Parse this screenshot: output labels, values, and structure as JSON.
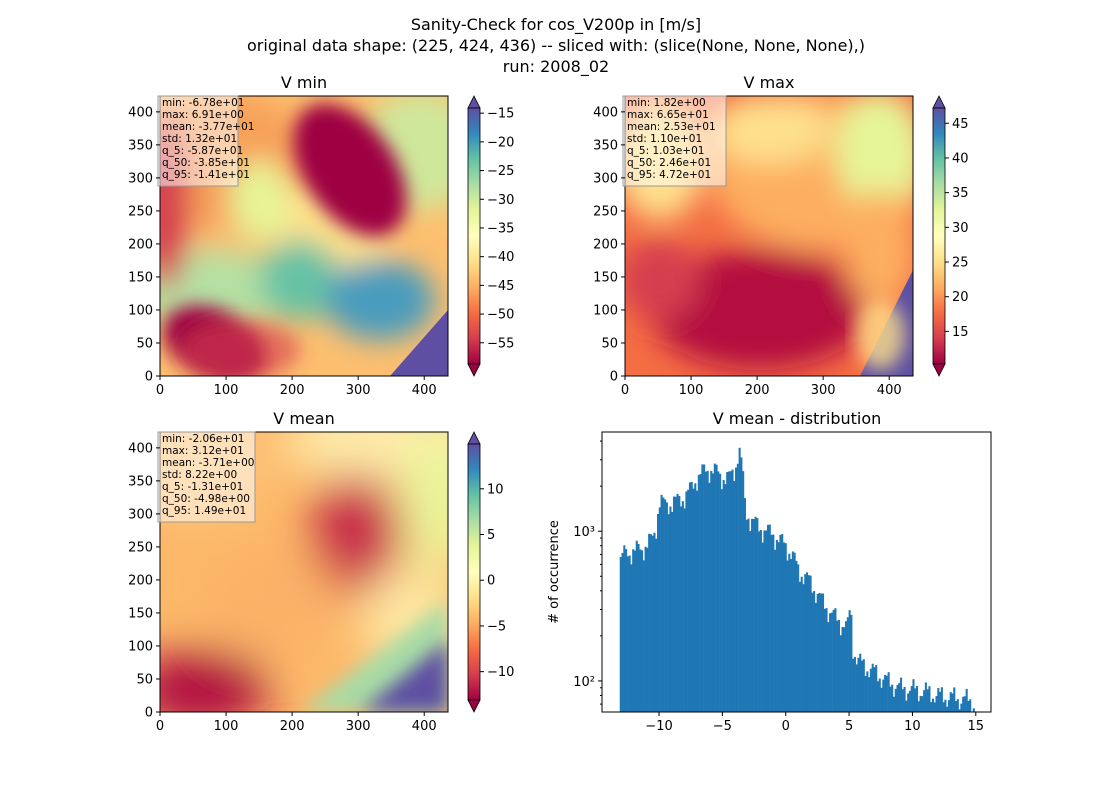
{
  "figure": {
    "suptitle_lines": [
      "Sanity-Check for cos_V200p in [m/s]",
      "original data shape: (225, 424, 436) -- sliced with: (slice(None, None, None),)",
      "run: 2008_02"
    ]
  },
  "chart_data": [
    {
      "type": "heatmap",
      "title": "V min",
      "colormap": "Spectral",
      "xlim": [
        0,
        436
      ],
      "ylim": [
        0,
        424
      ],
      "xticks": [
        0,
        100,
        200,
        300,
        400
      ],
      "yticks": [
        0,
        50,
        100,
        150,
        200,
        250,
        300,
        350,
        400
      ],
      "clim": [
        -58.7,
        -14.1
      ],
      "colorbar_ticks": [
        -55,
        -50,
        -45,
        -40,
        -35,
        -30,
        -25,
        -20,
        -15
      ],
      "colorbar_extend": "both",
      "stats": [
        "min: -6.78e+01",
        "max: 6.91e+00",
        "mean: -3.77e+01",
        "std: 1.32e+01",
        "q_5: -5.87e+01",
        "q_50: -3.85e+01",
        "q_95: -1.41e+01"
      ]
    },
    {
      "type": "heatmap",
      "title": "V max",
      "colormap": "Spectral",
      "xlim": [
        0,
        436
      ],
      "ylim": [
        0,
        424
      ],
      "xticks": [
        0,
        100,
        200,
        300,
        400
      ],
      "yticks": [
        0,
        50,
        100,
        150,
        200,
        250,
        300,
        350,
        400
      ],
      "clim": [
        10.3,
        47.2
      ],
      "colorbar_ticks": [
        15,
        20,
        25,
        30,
        35,
        40,
        45
      ],
      "colorbar_extend": "both",
      "stats": [
        "min: 1.82e+00",
        "max: 6.65e+01",
        "mean: 2.53e+01",
        "std: 1.10e+01",
        "q_5: 1.03e+01",
        "q_50: 2.46e+01",
        "q_95: 4.72e+01"
      ]
    },
    {
      "type": "heatmap",
      "title": "V mean",
      "colormap": "Spectral",
      "xlim": [
        0,
        436
      ],
      "ylim": [
        0,
        424
      ],
      "xticks": [
        0,
        100,
        200,
        300,
        400
      ],
      "yticks": [
        0,
        50,
        100,
        150,
        200,
        250,
        300,
        350,
        400
      ],
      "clim": [
        -13.1,
        14.9
      ],
      "colorbar_ticks": [
        -10,
        -5,
        0,
        5,
        10
      ],
      "colorbar_extend": "both",
      "stats": [
        "min: -2.06e+01",
        "max: 3.12e+01",
        "mean: -3.71e+00",
        "std: 8.22e+00",
        "q_5: -1.31e+01",
        "q_50: -4.98e+00",
        "q_95: 1.49e+01"
      ]
    },
    {
      "type": "bar",
      "title": "V mean - distribution",
      "ylabel": "# of occurrence",
      "yscale": "log",
      "xlim": [
        -14.5,
        16.2
      ],
      "ylim": [
        62,
        4600
      ],
      "xticks": [
        -10,
        -5,
        0,
        5,
        10,
        15
      ],
      "yticks": [
        100,
        1000
      ],
      "ytick_labels": [
        "10²",
        "10³"
      ],
      "bin_range": [
        -13.1,
        14.9
      ],
      "color": "#1f77b4",
      "anchors": [
        [
          -13.1,
          600
        ],
        [
          -12.9,
          690
        ],
        [
          -12.5,
          720
        ],
        [
          -12.0,
          740
        ],
        [
          -11.5,
          760
        ],
        [
          -11.0,
          800
        ],
        [
          -10.5,
          900
        ],
        [
          -10.2,
          1100
        ],
        [
          -10.0,
          1600
        ],
        [
          -9.5,
          1500
        ],
        [
          -9.0,
          1550
        ],
        [
          -8.5,
          1600
        ],
        [
          -8.0,
          1700
        ],
        [
          -7.5,
          1900
        ],
        [
          -7.0,
          2300
        ],
        [
          -6.5,
          2500
        ],
        [
          -6.0,
          2600
        ],
        [
          -5.5,
          2500
        ],
        [
          -5.0,
          2300
        ],
        [
          -4.5,
          2250
        ],
        [
          -4.0,
          2600
        ],
        [
          -3.7,
          3600
        ],
        [
          -3.4,
          2500
        ],
        [
          -3.2,
          1400
        ],
        [
          -2.8,
          1200
        ],
        [
          -2.0,
          1050
        ],
        [
          -1.0,
          950
        ],
        [
          0.0,
          800
        ],
        [
          0.5,
          700
        ],
        [
          1.0,
          550
        ],
        [
          1.5,
          500
        ],
        [
          2.0,
          450
        ],
        [
          2.5,
          380
        ],
        [
          3.0,
          330
        ],
        [
          3.5,
          290
        ],
        [
          4.0,
          260
        ],
        [
          4.5,
          240
        ],
        [
          4.9,
          230
        ],
        [
          5.1,
          330
        ],
        [
          5.3,
          170
        ],
        [
          5.6,
          140
        ],
        [
          6.0,
          130
        ],
        [
          7.0,
          115
        ],
        [
          8.0,
          100
        ],
        [
          9.0,
          90
        ],
        [
          10.0,
          88
        ],
        [
          11.0,
          85
        ],
        [
          12.0,
          80
        ],
        [
          13.0,
          78
        ],
        [
          14.0,
          76
        ],
        [
          14.9,
          72
        ]
      ]
    }
  ]
}
